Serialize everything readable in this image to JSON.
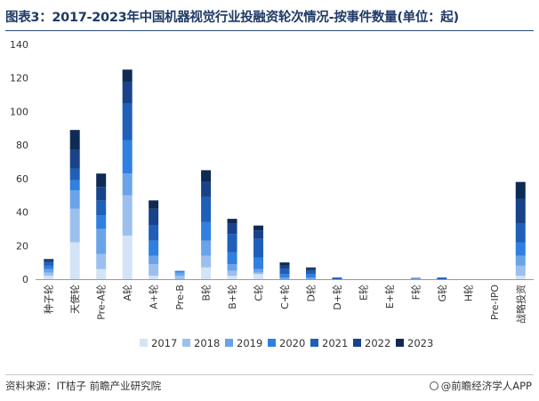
{
  "header": {
    "title": "图表3：2017-2023年中国机器视觉行业投融资轮次情况-按事件数量(单位：起)"
  },
  "footer": {
    "source": "资料来源：IT桔子 前瞻产业研究院",
    "brand": "@前瞻经济学人APP"
  },
  "colors": {
    "2017": "#d4e4f7",
    "2018": "#9cc0ee",
    "2019": "#6aa3e8",
    "2020": "#2f80e0",
    "2021": "#1f5fb8",
    "2022": "#18438a",
    "2023": "#0f2a55"
  },
  "chart_data": {
    "type": "bar",
    "stacked": true,
    "categories": [
      "种子轮",
      "天使轮",
      "Pre-A轮",
      "A轮",
      "A+轮",
      "Pre-B",
      "B轮",
      "B+轮",
      "C轮",
      "C+轮",
      "D轮",
      "D+轮",
      "E轮",
      "E+轮",
      "F轮",
      "G轮",
      "H轮",
      "Pre-IPO",
      "战略投资"
    ],
    "series": [
      {
        "name": "2017",
        "values": [
          2,
          22,
          6,
          26,
          2,
          0,
          7,
          2,
          3,
          0,
          0,
          0,
          0,
          0,
          0,
          0,
          0,
          0,
          2
        ]
      },
      {
        "name": "2018",
        "values": [
          2,
          20,
          9,
          24,
          7,
          2,
          7,
          3,
          1,
          0,
          0,
          0,
          0,
          0,
          0,
          0,
          0,
          0,
          6
        ]
      },
      {
        "name": "2019",
        "values": [
          2,
          11,
          15,
          13,
          5,
          2,
          9,
          4,
          2,
          1,
          1,
          0,
          0,
          0,
          1,
          0,
          0,
          0,
          6
        ]
      },
      {
        "name": "2020",
        "values": [
          2,
          6,
          8,
          20,
          9,
          1,
          11,
          7,
          7,
          2,
          2,
          0,
          0,
          0,
          0,
          0,
          0,
          0,
          8
        ]
      },
      {
        "name": "2021",
        "values": [
          2,
          7,
          9,
          22,
          9,
          0,
          15,
          11,
          11,
          3,
          2,
          1,
          0,
          0,
          0,
          1,
          0,
          0,
          11
        ]
      },
      {
        "name": "2022",
        "values": [
          1,
          11,
          8,
          13,
          10,
          0,
          9,
          6,
          5,
          2,
          1,
          0,
          0,
          0,
          0,
          0,
          0,
          0,
          15
        ]
      },
      {
        "name": "2023",
        "values": [
          1,
          12,
          8,
          7,
          5,
          0,
          7,
          3,
          3,
          2,
          1,
          0,
          0,
          0,
          0,
          0,
          0,
          0,
          10
        ]
      }
    ],
    "ylim": [
      0,
      140
    ],
    "yticks": [
      0,
      20,
      40,
      60,
      80,
      100,
      120,
      140
    ],
    "xlabel": "",
    "ylabel": "",
    "grid": false,
    "legend_position": "bottom"
  }
}
